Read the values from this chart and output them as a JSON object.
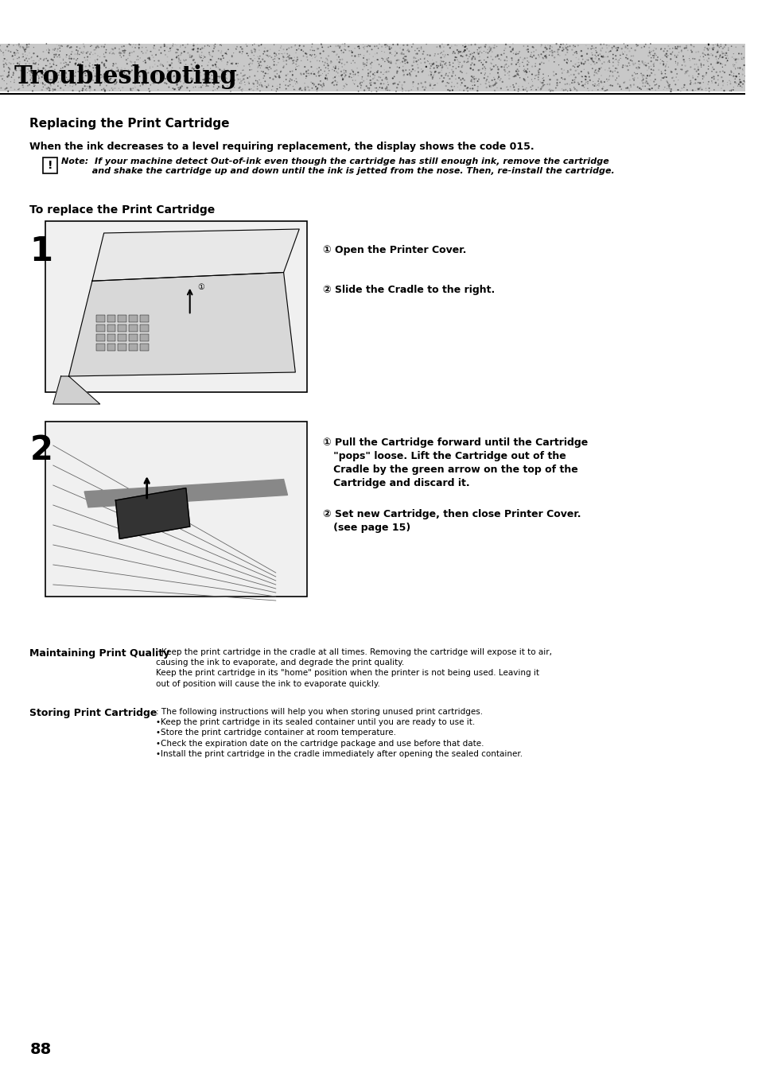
{
  "bg_color": "#ffffff",
  "title": "Troubleshooting",
  "section_title": "Replacing the Print Cartridge",
  "intro_text": "When the ink decreases to a level requiring replacement, the display shows the code 015.",
  "note_text": "Note:  If your machine detect Out-of-ink even though the cartridge has still enough ink, remove the cartridge\n          and shake the cartridge up and down until the ink is jetted from the nose. Then, re-install the cartridge.",
  "to_replace_text": "To replace the Print Cartridge",
  "step1_num": "1",
  "step1_instructions": [
    "① Open the Printer Cover.",
    "② Slide the Cradle to the right."
  ],
  "step2_num": "2",
  "step2_instructions": [
    "① Pull the Cartridge forward until the Cartridge\n   \"pops\" loose. Lift the Cartridge out of the\n   Cradle by the green arrow on the top of the\n   Cartridge and discard it.",
    "② Set new Cartridge, then close Printer Cover.\n   (see page 15)"
  ],
  "maintaining_label": "Maintaining Print Quality",
  "maintaining_text": "Keep the print cartridge in the cradle at all times. Removing the cartridge will expose it to air,\ncausing the ink to evaporate, and degrade the print quality.\nKeep the print cartridge in its \"home\" position when the printer is not being used. Leaving it\nout of position will cause the ink to evaporate quickly.",
  "storing_label": "Storing Print Cartridge",
  "storing_text": "The following instructions will help you when storing unused print cartridges.\n•Keep the print cartridge in its sealed container until you are ready to use it.\n•Store the print cartridge container at room temperature.\n•Check the expiration date on the cartridge package and use before that date.\n•Install the print cartridge in the cradle immediately after opening the sealed container.",
  "page_number": "88",
  "header_bg": "#d0d0d0",
  "title_font_size": 22,
  "section_font_size": 11,
  "body_font_size": 9,
  "small_font_size": 8
}
